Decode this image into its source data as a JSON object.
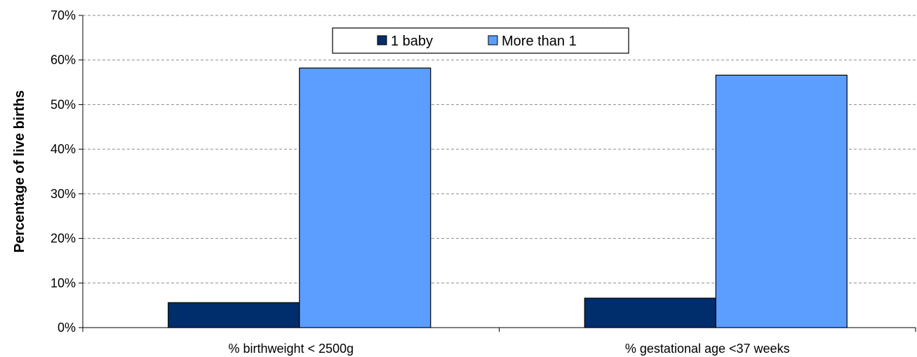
{
  "chart_data": {
    "type": "bar",
    "categories": [
      "% birthweight < 2500g",
      "% gestational age <37 weeks"
    ],
    "series": [
      {
        "name": "1 baby",
        "values": [
          5.6,
          6.6
        ],
        "color": "#002d6b"
      },
      {
        "name": "More than 1",
        "values": [
          58.2,
          56.6
        ],
        "color": "#5b9eff"
      }
    ],
    "title": "",
    "xlabel": "",
    "ylabel": "Percentage of live births",
    "ylim": [
      0,
      70
    ],
    "yticks": [
      0,
      10,
      20,
      30,
      40,
      50,
      60,
      70
    ],
    "ytick_labels": [
      "0%",
      "10%",
      "20%",
      "30%",
      "40%",
      "50%",
      "60%",
      "70%"
    ],
    "grid": true,
    "legend_position": "top-center"
  }
}
